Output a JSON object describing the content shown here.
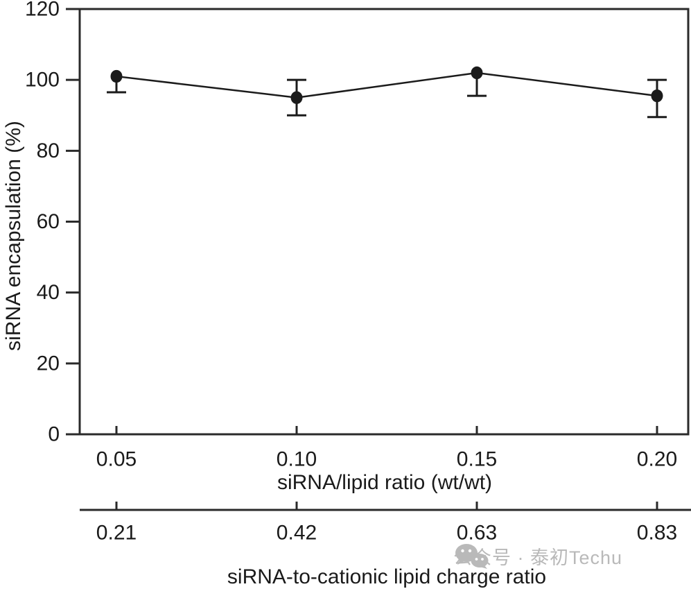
{
  "colors": {
    "data": "#1b1b1b",
    "axis": "#2a2a2a",
    "text": "#1a1a1a",
    "watermark": "#b9b9b9",
    "background": "#ffffff"
  },
  "watermark": {
    "icon": "wechat-icon",
    "text": "公众号 · 泰初Techu"
  },
  "chart_data": {
    "type": "line",
    "title": "",
    "x": [
      0.05,
      0.1,
      0.15,
      0.2
    ],
    "x_tick_labels": [
      "0.05",
      "0.10",
      "0.15",
      "0.20"
    ],
    "series": [
      {
        "name": "siRNA encapsulation",
        "values": [
          101,
          95,
          102,
          95.5
        ],
        "error_up": [
          0,
          5,
          0,
          4.5
        ],
        "error_down": [
          4.5,
          5,
          6.5,
          6
        ]
      }
    ],
    "xlabel": "siRNA/lipid ratio (wt/wt)",
    "ylabel": "siRNA encapsulation (%)",
    "ylim": [
      0,
      120
    ],
    "y_ticks": [
      0,
      20,
      40,
      60,
      80,
      100,
      120
    ],
    "secondary_x": {
      "label": "siRNA-to-cationic lipid charge ratio",
      "tick_labels": [
        "0.21",
        "0.42",
        "0.63",
        "0.83"
      ]
    },
    "marker": "filled-circle",
    "line_style": "solid",
    "grid": false,
    "legend": "none"
  }
}
